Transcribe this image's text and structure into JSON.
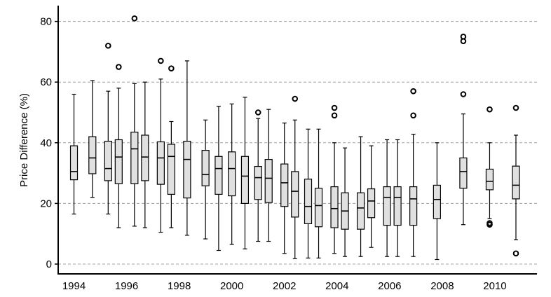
{
  "chart_data": {
    "type": "boxplot",
    "title": "",
    "xlabel": "",
    "ylabel": "Price Difference (%)",
    "ylim": [
      -2,
      85
    ],
    "yticks": [
      0,
      20,
      40,
      60,
      80
    ],
    "xtick_labels": [
      "1994",
      "1996",
      "1998",
      "2000",
      "2002",
      "2004",
      "2006",
      "2008",
      "2010"
    ],
    "xlim": [
      1993.4,
      2011.6
    ],
    "grid": "horizontal dashed",
    "box_fill": "#e0e0e0",
    "boxes": [
      {
        "x": 1994.0,
        "whislo": 16.5,
        "q1": 27.8,
        "med": 30.5,
        "q3": 39.0,
        "whishi": 56.0,
        "fliers": []
      },
      {
        "x": 1994.7,
        "whislo": 22.0,
        "q1": 29.8,
        "med": 35.0,
        "q3": 42.0,
        "whishi": 60.5,
        "fliers": []
      },
      {
        "x": 1995.3,
        "whislo": 16.5,
        "q1": 27.5,
        "med": 31.5,
        "q3": 40.5,
        "whishi": 57.0,
        "fliers": [
          72.0
        ]
      },
      {
        "x": 1995.7,
        "whislo": 12.0,
        "q1": 26.5,
        "med": 35.3,
        "q3": 41.0,
        "whishi": 58.0,
        "fliers": [
          65.0
        ]
      },
      {
        "x": 1996.3,
        "whislo": 12.5,
        "q1": 26.5,
        "med": 38.0,
        "q3": 43.5,
        "whishi": 59.5,
        "fliers": [
          81.0
        ]
      },
      {
        "x": 1996.7,
        "whislo": 12.0,
        "q1": 27.5,
        "med": 35.3,
        "q3": 42.5,
        "whishi": 60.0,
        "fliers": []
      },
      {
        "x": 1997.3,
        "whislo": 10.5,
        "q1": 26.3,
        "med": 35.0,
        "q3": 40.3,
        "whishi": 61.0,
        "fliers": [
          67.0
        ]
      },
      {
        "x": 1997.7,
        "whislo": 12.0,
        "q1": 23.0,
        "med": 35.5,
        "q3": 39.5,
        "whishi": 47.0,
        "fliers": [
          64.5
        ]
      },
      {
        "x": 1998.3,
        "whislo": 9.5,
        "q1": 21.8,
        "med": 34.5,
        "q3": 40.5,
        "whishi": 67.0,
        "fliers": []
      },
      {
        "x": 1999.0,
        "whislo": 8.3,
        "q1": 25.8,
        "med": 29.5,
        "q3": 37.5,
        "whishi": 47.5,
        "fliers": []
      },
      {
        "x": 1999.5,
        "whislo": 4.5,
        "q1": 23.0,
        "med": 31.5,
        "q3": 35.5,
        "whishi": 52.0,
        "fliers": []
      },
      {
        "x": 2000.0,
        "whislo": 6.5,
        "q1": 22.5,
        "med": 31.5,
        "q3": 37.0,
        "whishi": 52.8,
        "fliers": []
      },
      {
        "x": 2000.5,
        "whislo": 5.0,
        "q1": 20.0,
        "med": 29.0,
        "q3": 35.5,
        "whishi": 55.0,
        "fliers": []
      },
      {
        "x": 2001.0,
        "whislo": 7.5,
        "q1": 21.3,
        "med": 28.5,
        "q3": 32.2,
        "whishi": 48.0,
        "fliers": [
          50.0
        ]
      },
      {
        "x": 2001.4,
        "whislo": 7.5,
        "q1": 20.3,
        "med": 28.3,
        "q3": 34.5,
        "whishi": 51.0,
        "fliers": []
      },
      {
        "x": 2002.0,
        "whislo": 3.5,
        "q1": 19.0,
        "med": 26.8,
        "q3": 33.0,
        "whishi": 46.5,
        "fliers": []
      },
      {
        "x": 2002.4,
        "whislo": 1.8,
        "q1": 15.5,
        "med": 24.0,
        "q3": 30.5,
        "whishi": 47.5,
        "fliers": [
          54.5
        ]
      },
      {
        "x": 2002.9,
        "whislo": 2.0,
        "q1": 13.3,
        "med": 19.0,
        "q3": 28.0,
        "whishi": 44.5,
        "fliers": []
      },
      {
        "x": 2003.3,
        "whislo": 2.0,
        "q1": 12.3,
        "med": 19.3,
        "q3": 25.0,
        "whishi": 44.5,
        "fliers": []
      },
      {
        "x": 2003.9,
        "whislo": 3.5,
        "q1": 12.0,
        "med": 18.3,
        "q3": 25.5,
        "whishi": 40.0,
        "fliers": [
          51.5,
          49.0
        ]
      },
      {
        "x": 2004.3,
        "whislo": 2.5,
        "q1": 11.5,
        "med": 17.5,
        "q3": 23.5,
        "whishi": 38.3,
        "fliers": []
      },
      {
        "x": 2004.9,
        "whislo": 2.5,
        "q1": 11.5,
        "med": 18.5,
        "q3": 23.5,
        "whishi": 42.0,
        "fliers": []
      },
      {
        "x": 2005.3,
        "whislo": 5.5,
        "q1": 15.3,
        "med": 20.8,
        "q3": 24.8,
        "whishi": 39.0,
        "fliers": []
      },
      {
        "x": 2005.9,
        "whislo": 2.5,
        "q1": 12.8,
        "med": 22.0,
        "q3": 25.5,
        "whishi": 41.0,
        "fliers": []
      },
      {
        "x": 2006.3,
        "whislo": 2.5,
        "q1": 12.8,
        "med": 22.0,
        "q3": 25.5,
        "whishi": 41.0,
        "fliers": []
      },
      {
        "x": 2006.9,
        "whislo": 2.5,
        "q1": 12.8,
        "med": 21.5,
        "q3": 25.5,
        "whishi": 42.8,
        "fliers": [
          57.0,
          49.0
        ]
      },
      {
        "x": 2007.8,
        "whislo": 1.5,
        "q1": 15.0,
        "med": 21.3,
        "q3": 26.0,
        "whishi": 40.0,
        "fliers": []
      },
      {
        "x": 2008.8,
        "whislo": 13.0,
        "q1": 25.0,
        "med": 30.5,
        "q3": 35.0,
        "whishi": 49.5,
        "fliers": [
          75.0,
          73.5,
          56.0
        ]
      },
      {
        "x": 2009.8,
        "whislo": 15.0,
        "q1": 24.5,
        "med": 27.3,
        "q3": 31.3,
        "whishi": 40.0,
        "fliers": [
          51.0,
          13.5,
          13.0
        ]
      },
      {
        "x": 2010.8,
        "whislo": 8.0,
        "q1": 21.5,
        "med": 26.0,
        "q3": 32.3,
        "whishi": 42.5,
        "fliers": [
          51.5,
          3.5
        ]
      }
    ]
  }
}
